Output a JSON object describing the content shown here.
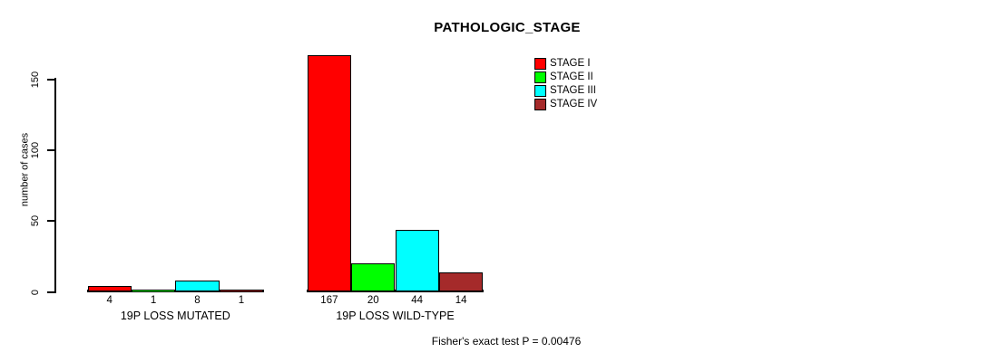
{
  "chart_data": {
    "type": "bar",
    "title": "PATHOLOGIC_STAGE",
    "ylabel": "number of cases",
    "ylim": [
      0,
      150
    ],
    "yticks": [
      0,
      50,
      100,
      150
    ],
    "grid": false,
    "categories": [
      "19P LOSS MUTATED",
      "19P LOSS WILD-TYPE"
    ],
    "series": [
      {
        "name": "STAGE I",
        "color": "#FF0000",
        "values": [
          4,
          167
        ]
      },
      {
        "name": "STAGE II",
        "color": "#00FF00",
        "values": [
          1,
          20
        ]
      },
      {
        "name": "STAGE III",
        "color": "#00FFFF",
        "values": [
          8,
          44
        ]
      },
      {
        "name": "STAGE IV",
        "color": "#A52A2A",
        "values": [
          1,
          14
        ]
      }
    ],
    "bar_value_labels": [
      [
        4,
        1,
        8,
        1
      ],
      [
        167,
        20,
        44,
        14
      ]
    ],
    "legend": {
      "position": "top-right",
      "entries": [
        "STAGE I",
        "STAGE II",
        "STAGE III",
        "STAGE IV"
      ]
    },
    "annotation": "Fisher's exact test P = 0.00476"
  }
}
